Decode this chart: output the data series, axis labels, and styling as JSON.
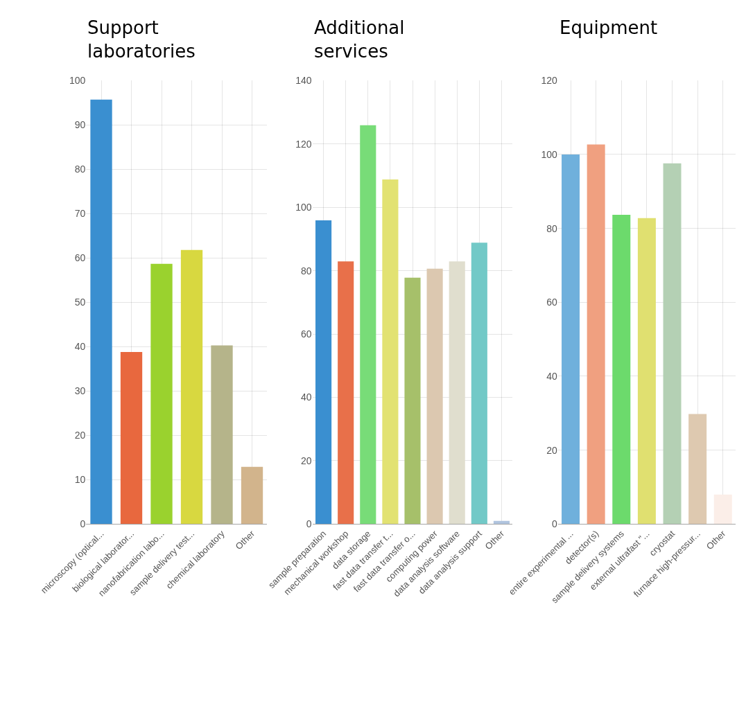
{
  "chart_data": [
    {
      "type": "bar",
      "title": "Support laboratories",
      "categories": [
        "microscopy (optical...",
        "biological laborator...",
        "nanofabrication labo...",
        "sample delivery test...",
        "chemical laboratory",
        "Other"
      ],
      "values": [
        95.7,
        38.8,
        58.7,
        61.8,
        40.3,
        12.9
      ],
      "colors": [
        "#3a8fd0",
        "#e8683e",
        "#9ad22e",
        "#d8d840",
        "#b5b48a",
        "#d2b48c"
      ],
      "ylim": [
        0,
        100
      ],
      "yticks": [
        0,
        10,
        20,
        30,
        40,
        50,
        60,
        70,
        80,
        90,
        100
      ],
      "grid": true
    },
    {
      "type": "bar",
      "title": "Additional services",
      "categories": [
        "sample preparation",
        "mechanical workshop",
        "data storage",
        "fast data transfer t...",
        "fast data transfer o...",
        "computing power",
        "data analysis software",
        "data analysis support",
        "Other"
      ],
      "values": [
        95.9,
        82.9,
        125.9,
        108.8,
        77.8,
        80.6,
        82.9,
        88.8,
        1
      ],
      "colors": [
        "#3a8fd0",
        "#e8704a",
        "#78dc78",
        "#e2e272",
        "#a6c06a",
        "#dcc8b0",
        "#e0dece",
        "#72c9c7",
        "#b0c4de"
      ],
      "ylim": [
        0,
        140
      ],
      "yticks": [
        0,
        20,
        40,
        60,
        80,
        100,
        120,
        140
      ],
      "grid": true
    },
    {
      "type": "bar",
      "title": "Equipment",
      "categories": [
        "entire experimental ...",
        "detector(s)",
        "sample delivery systems",
        "external ultrafast \"...",
        "cryostat",
        "furnace high-pressur...",
        "Other"
      ],
      "values": [
        100,
        102.7,
        83.7,
        82.8,
        97.6,
        29.8,
        8.0
      ],
      "colors": [
        "#6fb0dc",
        "#f0a080",
        "#6cda6c",
        "#e0e070",
        "#b4d0b4",
        "#dec9b0",
        "#fbeee8"
      ],
      "ylim": [
        0,
        120
      ],
      "yticks": [
        0,
        20,
        40,
        60,
        80,
        100,
        120
      ],
      "grid": true
    }
  ]
}
